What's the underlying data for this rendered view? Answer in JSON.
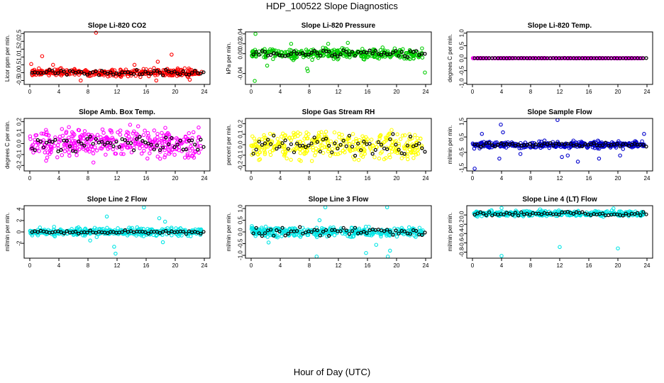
{
  "page_title": "HDP_100522  Slope Diagnostics",
  "x_label": "Hour of Day (UTC)",
  "chart_data": [
    {
      "type": "scatter",
      "title": "Slope Li-820 CO2",
      "ylabel": "Licor ppm per min.",
      "color": "#ff0000",
      "xlim": [
        0,
        24
      ],
      "xticks": [
        0,
        4,
        8,
        12,
        16,
        20,
        24
      ],
      "ylim": [
        -0.75,
        2.6
      ],
      "yticks": [
        "-0.5",
        "0.0",
        "0.5",
        "1.0",
        "1.5",
        "2.0",
        "2.5"
      ],
      "ytick_values": [
        -0.5,
        0,
        0.5,
        1,
        1.5,
        2,
        2.5
      ],
      "center": 0.0,
      "spread": 0.2,
      "black_spread": 0.15,
      "outliers": [
        [
          9.1,
          2.55
        ],
        [
          19.5,
          1.15
        ],
        [
          1.7,
          1.05
        ],
        [
          17.6,
          0.7
        ],
        [
          0.2,
          0.55
        ],
        [
          3.2,
          0.5
        ],
        [
          14.4,
          0.5
        ],
        [
          17.4,
          -0.5
        ],
        [
          7.0,
          -0.5
        ],
        [
          22.0,
          -0.45
        ]
      ]
    },
    {
      "type": "scatter",
      "title": "Slope Li-820 Pressure",
      "ylabel": "kPa per min.",
      "color": "#00cc00",
      "xlim": [
        0,
        24
      ],
      "xticks": [
        0,
        4,
        8,
        12,
        16,
        20,
        24
      ],
      "ylim": [
        -0.062,
        0.044
      ],
      "yticks": [
        "-0.04",
        "0.00",
        "0.02",
        "0.04"
      ],
      "ytick_values": [
        -0.04,
        0,
        0.02,
        0.04
      ],
      "center": 0.0,
      "spread": 0.009,
      "black_spread": 0.006,
      "outliers": [
        [
          0.6,
          0.04
        ],
        [
          0.5,
          -0.055
        ],
        [
          7.8,
          -0.035
        ],
        [
          23.9,
          -0.038
        ],
        [
          2.2,
          -0.024
        ],
        [
          5.5,
          0.02
        ],
        [
          10.6,
          0.02
        ],
        [
          13.3,
          0.022
        ],
        [
          7.7,
          -0.03
        ]
      ]
    },
    {
      "type": "scatter",
      "title": "Slope Li-820 Temp.",
      "ylabel": "degrees C per min.",
      "color": "#ff00ff",
      "xlim": [
        0,
        24
      ],
      "xticks": [
        0,
        4,
        8,
        12,
        16,
        20,
        24
      ],
      "ylim": [
        -1.05,
        1.05
      ],
      "yticks": [
        "-1.0",
        "-0.5",
        "0.0",
        "0.5",
        "1.0"
      ],
      "ytick_values": [
        -1,
        -0.5,
        0,
        0.5,
        1
      ],
      "center": 0.0,
      "spread": 0.004,
      "black_spread": 0.002,
      "outliers": []
    },
    {
      "type": "scatter",
      "title": "Slope Amb. Box Temp.",
      "ylabel": "degrees C per min.",
      "color": "#ff00ff",
      "xlim": [
        0,
        24
      ],
      "xticks": [
        0,
        4,
        8,
        12,
        16,
        20,
        24
      ],
      "ylim": [
        -0.25,
        0.23
      ],
      "yticks": [
        "-0.2",
        "-0.1",
        "0.0",
        "0.1",
        "0.2"
      ],
      "ytick_values": [
        -0.2,
        -0.1,
        0,
        0.1,
        0.2
      ],
      "center": 0.0,
      "spread": 0.12,
      "black_spread": 0.06,
      "outliers": []
    },
    {
      "type": "scatter",
      "title": "Slope Gas Stream RH",
      "ylabel": "percent per min.",
      "color": "#ffff00",
      "xlim": [
        0,
        24
      ],
      "xticks": [
        0,
        4,
        8,
        12,
        16,
        20,
        24
      ],
      "ylim": [
        -0.25,
        0.25
      ],
      "yticks": [
        "-0.2",
        "-0.1",
        "0.0",
        "0.1",
        "0.2"
      ],
      "ytick_values": [
        -0.2,
        -0.1,
        0,
        0.1,
        0.2
      ],
      "center": 0.0,
      "spread": 0.12,
      "black_spread": 0.09,
      "outliers": []
    },
    {
      "type": "scatter",
      "title": "Slope Sample Flow",
      "ylabel": "ml/min per min.",
      "color": "#0000cc",
      "xlim": [
        0,
        24
      ],
      "xticks": [
        0,
        4,
        8,
        12,
        16,
        20,
        24
      ],
      "ylim": [
        -1.7,
        1.7
      ],
      "yticks": [
        "-1.5",
        "-0.5",
        "0.5",
        "1.5"
      ],
      "ytick_values": [
        -1.5,
        -0.5,
        0.5,
        1.5
      ],
      "center": 0.0,
      "spread": 0.2,
      "black_spread": 0.12,
      "outliers": [
        [
          11.7,
          1.6
        ],
        [
          0.3,
          -1.55
        ],
        [
          3.9,
          1.3
        ],
        [
          1.3,
          0.7
        ],
        [
          14.5,
          -1.1
        ],
        [
          3.7,
          -0.9
        ],
        [
          4.2,
          0.8
        ],
        [
          12.3,
          -0.8
        ],
        [
          13.1,
          -0.7
        ],
        [
          17.4,
          -0.9
        ],
        [
          20.3,
          -0.7
        ],
        [
          23.6,
          0.7
        ],
        [
          6.6,
          -0.6
        ]
      ]
    },
    {
      "type": "scatter",
      "title": "Slope Line 2 Flow",
      "ylabel": "ml/min per min.",
      "color": "#00e5e5",
      "xlim": [
        0,
        24
      ],
      "xticks": [
        0,
        4,
        8,
        12,
        16,
        20,
        24
      ],
      "ylim": [
        -4.6,
        4.6
      ],
      "yticks": [
        "-2",
        "0",
        "2",
        "4"
      ],
      "ytick_values": [
        -2,
        0,
        2,
        4
      ],
      "center": 0.0,
      "spread": 0.6,
      "black_spread": 0.3,
      "outliers": [
        [
          15.7,
          4.3
        ],
        [
          11.8,
          -3.8
        ],
        [
          10.6,
          2.7
        ],
        [
          11.6,
          -2.6
        ],
        [
          17.8,
          2.4
        ],
        [
          18.6,
          1.8
        ],
        [
          18.3,
          -1.8
        ],
        [
          8.3,
          -1.5
        ],
        [
          9.2,
          -0.9
        ]
      ]
    },
    {
      "type": "scatter",
      "title": "Slope Line 3 Flow",
      "ylabel": "ml/min per min.",
      "color": "#00e5e5",
      "xlim": [
        0,
        24
      ],
      "xticks": [
        0,
        4,
        8,
        12,
        16,
        20,
        24
      ],
      "ylim": [
        -1.12,
        1.12
      ],
      "yticks": [
        "-1.0",
        "-0.5",
        "0.0",
        "0.5",
        "1.0"
      ],
      "ytick_values": [
        -1,
        -0.5,
        0,
        0.5,
        1
      ],
      "center": 0.0,
      "spread": 0.2,
      "black_spread": 0.18,
      "outliers": [
        [
          10.2,
          1.05
        ],
        [
          18.7,
          1.05
        ],
        [
          9.0,
          -1.05
        ],
        [
          18.8,
          -1.05
        ],
        [
          15.8,
          -0.9
        ],
        [
          9.4,
          0.5
        ],
        [
          17.2,
          -0.55
        ],
        [
          2.4,
          -0.45
        ],
        [
          19.1,
          -0.8
        ]
      ]
    },
    {
      "type": "scatter",
      "title": "Slope Line 4 (LT) Flow",
      "ylabel": "ml/min per min.",
      "color": "#00e5e5",
      "xlim": [
        0,
        24
      ],
      "xticks": [
        0,
        4,
        8,
        12,
        16,
        20,
        24
      ],
      "ylim": [
        -0.93,
        0.2
      ],
      "yticks": [
        "-0.8",
        "-0.6",
        "-0.4",
        "-0.2",
        "0.0"
      ],
      "ytick_values": [
        -0.8,
        -0.6,
        -0.4,
        -0.2,
        0
      ],
      "center": 0.03,
      "spread": 0.05,
      "black_spread": 0.04,
      "outliers": [
        [
          4.0,
          -0.88
        ],
        [
          12.0,
          -0.69
        ],
        [
          20.0,
          -0.72
        ],
        [
          4.0,
          0.15
        ],
        [
          9.3,
          0.12
        ],
        [
          19.4,
          0.14
        ]
      ]
    }
  ]
}
